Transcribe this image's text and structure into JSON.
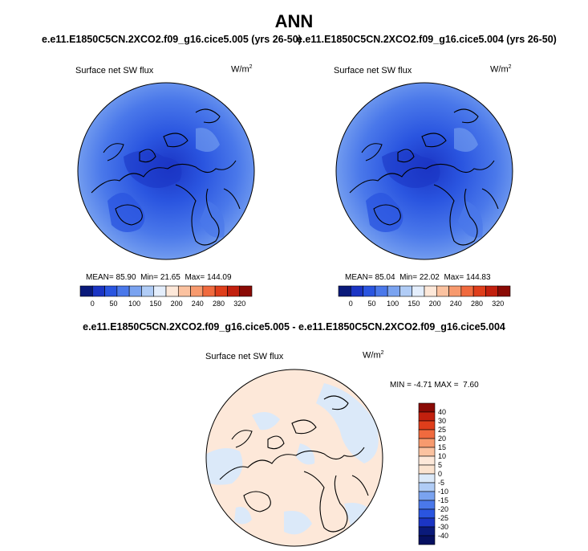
{
  "page_title": "ANN",
  "panels": [
    {
      "case_title": "e.e11.E1850C5CN.2XCO2.f09_g16.cice5.005 (yrs 26-50)",
      "variable": "Surface net SW flux",
      "units": "W/m",
      "units_sup": "2",
      "stats": {
        "mean_label": "MEAN=",
        "mean": "85.90",
        "min_label": "Min=",
        "min": "21.65",
        "max_label": "Max=",
        "max": "144.09"
      }
    },
    {
      "case_title": "e.e11.E1850C5CN.2XCO2.f09_g16.cice5.004 (yrs 26-50)",
      "variable": "Surface net SW flux",
      "units": "W/m",
      "units_sup": "2",
      "stats": {
        "mean_label": "MEAN=",
        "mean": "85.04",
        "min_label": "Min=",
        "min": "22.02",
        "max_label": "Max=",
        "max": "144.83"
      }
    }
  ],
  "difference": {
    "title": "e.e11.E1850C5CN.2XCO2.f09_g16.cice5.005 - e.e11.E1850C5CN.2XCO2.f09_g16.cice5.004",
    "variable": "Surface net SW flux",
    "units": "W/m",
    "units_sup": "2",
    "stats": {
      "min_label": "MIN =",
      "min": "-4.71",
      "max_label": "MAX =",
      "max": "7.60"
    }
  },
  "chart_data": [
    {
      "type": "heatmap",
      "projection": "north polar stereographic",
      "field": "Surface net SW flux",
      "colorbar": {
        "orientation": "horizontal",
        "tick_labels": [
          "0",
          "50",
          "100",
          "150",
          "200",
          "240",
          "280",
          "320"
        ],
        "colors": [
          "#0a1a7a",
          "#1b35c4",
          "#2a55e0",
          "#4a78ea",
          "#7aa3f0",
          "#b0ccf6",
          "#e4eefc",
          "#fde8d9",
          "#fbc2a0",
          "#f79a6e",
          "#f06a3e",
          "#df3e1b",
          "#c2200e",
          "#8a0a05"
        ]
      },
      "stats": {
        "mean": 85.9,
        "min": 21.65,
        "max": 144.09
      }
    },
    {
      "type": "heatmap",
      "projection": "north polar stereographic",
      "field": "Surface net SW flux",
      "colorbar": {
        "orientation": "horizontal",
        "tick_labels": [
          "0",
          "50",
          "100",
          "150",
          "200",
          "240",
          "280",
          "320"
        ],
        "colors": [
          "#0a1a7a",
          "#1b35c4",
          "#2a55e0",
          "#4a78ea",
          "#7aa3f0",
          "#b0ccf6",
          "#e4eefc",
          "#fde8d9",
          "#fbc2a0",
          "#f79a6e",
          "#f06a3e",
          "#df3e1b",
          "#c2200e",
          "#8a0a05"
        ]
      },
      "stats": {
        "mean": 85.04,
        "min": 22.02,
        "max": 144.83
      }
    },
    {
      "type": "heatmap",
      "projection": "north polar stereographic",
      "field": "Surface net SW flux difference",
      "colorbar": {
        "orientation": "vertical",
        "tick_labels": [
          "40",
          "30",
          "25",
          "20",
          "15",
          "10",
          "5",
          "0",
          "-5",
          "-10",
          "-15",
          "-20",
          "-25",
          "-30",
          "-40"
        ],
        "colors": [
          "#8a0a05",
          "#c2200e",
          "#df3e1b",
          "#f06a3e",
          "#f79a6e",
          "#fbc2a0",
          "#fde8d9",
          "#fbe3cf",
          "#dbe9f9",
          "#b0ccf6",
          "#7aa3f0",
          "#4a78ea",
          "#2a55e0",
          "#1b35c4",
          "#0a1a7a",
          "#061060"
        ]
      },
      "stats": {
        "min": -4.71,
        "max": 7.6
      }
    }
  ]
}
